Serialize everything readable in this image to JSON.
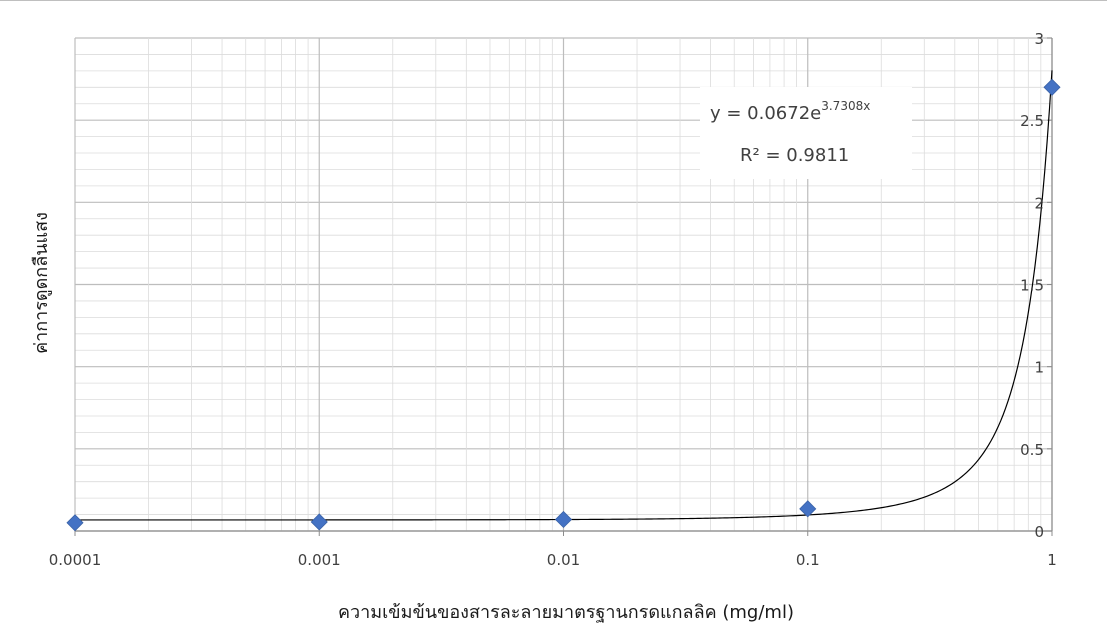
{
  "chart_data": {
    "type": "scatter",
    "title": "",
    "xlabel": "ความเข้มข้นของสารละลายมาตรฐานกรดแกลลิค (mg/ml)",
    "ylabel": "ค่าการดูดกลืนแสง",
    "x_scale": "log",
    "xlim": [
      0.0001,
      1
    ],
    "ylim": [
      0,
      3
    ],
    "x_ticks": [
      "0.0001",
      "0.001",
      "0.01",
      "0.1",
      "1"
    ],
    "y_ticks": [
      "0",
      "0.5",
      "1",
      "1.5",
      "2",
      "2.5",
      "3"
    ],
    "y_axis_side": "right",
    "grid": true,
    "marker_color": "#4472c4",
    "series": [
      {
        "x": [
          0.0001,
          0.001,
          0.01,
          0.1,
          1
        ],
        "y": [
          0.05,
          0.055,
          0.07,
          0.135,
          2.7
        ]
      }
    ],
    "trendline": {
      "type": "exponential",
      "a": 0.0672,
      "b": 3.7308,
      "equation_text": "y = 0.0672e",
      "exponent_text": "3.7308x",
      "r2_text": "R² = 0.9811"
    }
  }
}
